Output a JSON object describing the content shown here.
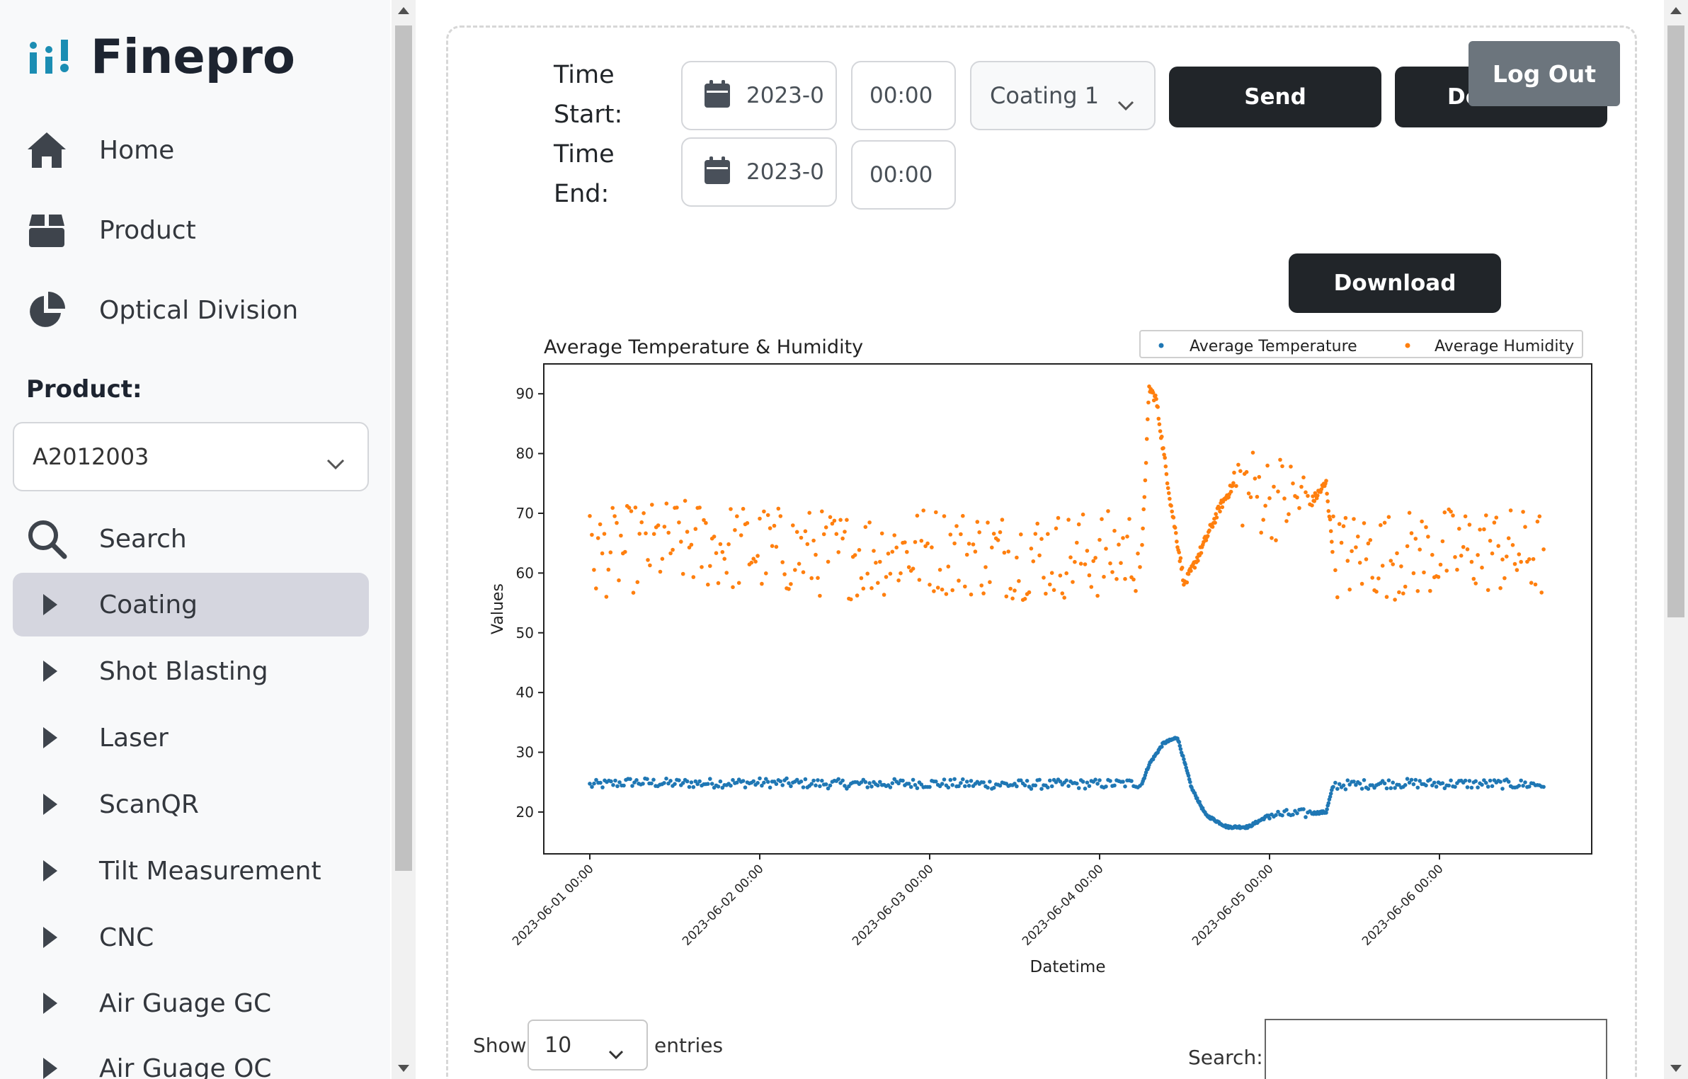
{
  "brand": {
    "name": "Finepro",
    "color": "#1b8db3"
  },
  "sidebar": {
    "top_items": [
      {
        "label": "Home",
        "icon": "home-icon"
      },
      {
        "label": "Product",
        "icon": "box-icon"
      },
      {
        "label": "Optical Division",
        "icon": "pie-chart-icon"
      }
    ],
    "product_label": "Product:",
    "product_value": "A2012003",
    "search_label": "Search",
    "menu_items": [
      {
        "label": "Coating",
        "active": true
      },
      {
        "label": "Shot Blasting"
      },
      {
        "label": "Laser"
      },
      {
        "label": "ScanQR"
      },
      {
        "label": "Tilt Measurement"
      },
      {
        "label": "CNC"
      },
      {
        "label": "Air Guage GC"
      },
      {
        "label": "Air Guage OC"
      }
    ]
  },
  "controls": {
    "start_label_1": "Time",
    "start_label_2": "Start:",
    "end_label_1": "Time",
    "end_label_2": "End:",
    "start_date": "2023-0",
    "start_time": "00:00",
    "end_date": "2023-0",
    "end_time": "00:00",
    "machine": "Coating 1",
    "send_label": "Send",
    "download_hidden_label": "Do",
    "logout_label": "Log Out",
    "download_label": "Download"
  },
  "table_controls": {
    "show_label": "Show",
    "entries_value": "10",
    "entries_label": "entries",
    "search_label": "Search:"
  },
  "chart_data": {
    "type": "scatter",
    "title": "Average Temperature & Humidity",
    "xlabel": "Datetime",
    "ylabel": "Values",
    "ylim": [
      13,
      95
    ],
    "yticks": [
      20,
      30,
      40,
      50,
      60,
      70,
      80,
      90
    ],
    "x_range": [
      "2023-06-01 00:00",
      "2023-06-06 15:00"
    ],
    "xticks": [
      "2023-06-01 00:00",
      "2023-06-02 00:00",
      "2023-06-03 00:00",
      "2023-06-04 00:00",
      "2023-06-05 00:00",
      "2023-06-06 00:00"
    ],
    "legend_position": "top-right",
    "series": [
      {
        "name": "Average Temperature",
        "color": "#1f77b4",
        "points": [
          [
            "2023-06-01 00:00",
            24.5
          ],
          [
            "2023-06-01 06:00",
            25.0
          ],
          [
            "2023-06-01 12:00",
            24.8
          ],
          [
            "2023-06-02 00:00",
            24.9
          ],
          [
            "2023-06-02 12:00",
            24.7
          ],
          [
            "2023-06-03 00:00",
            24.8
          ],
          [
            "2023-06-03 12:00",
            24.6
          ],
          [
            "2023-06-04 00:00",
            24.7
          ],
          [
            "2023-06-04 06:00",
            24.8
          ],
          [
            "2023-06-04 07:00",
            28.0
          ],
          [
            "2023-06-04 09:00",
            31.5
          ],
          [
            "2023-06-04 11:00",
            32.5
          ],
          [
            "2023-06-04 13:00",
            24.0
          ],
          [
            "2023-06-04 15:00",
            19.5
          ],
          [
            "2023-06-04 18:00",
            17.5
          ],
          [
            "2023-06-04 21:00",
            17.5
          ],
          [
            "2023-06-05 00:00",
            19.5
          ],
          [
            "2023-06-05 06:00",
            19.8
          ],
          [
            "2023-06-05 08:00",
            20.0
          ],
          [
            "2023-06-05 09:00",
            24.5
          ],
          [
            "2023-06-05 18:00",
            24.8
          ],
          [
            "2023-06-06 06:00",
            24.7
          ],
          [
            "2023-06-06 15:00",
            24.6
          ]
        ]
      },
      {
        "name": "Average Humidity",
        "color": "#ff7f0e",
        "points": [
          [
            "2023-06-01 00:00",
            63
          ],
          [
            "2023-06-01 12:00",
            65
          ],
          [
            "2023-06-02 00:00",
            64
          ],
          [
            "2023-06-02 12:00",
            63
          ],
          [
            "2023-06-03 00:00",
            64
          ],
          [
            "2023-06-03 12:00",
            63
          ],
          [
            "2023-06-04 00:00",
            63
          ],
          [
            "2023-06-04 06:00",
            64
          ],
          [
            "2023-06-04 07:00",
            91
          ],
          [
            "2023-06-04 08:00",
            89
          ],
          [
            "2023-06-04 10:00",
            72
          ],
          [
            "2023-06-04 12:00",
            58
          ],
          [
            "2023-06-04 14:00",
            63
          ],
          [
            "2023-06-04 17:00",
            71
          ],
          [
            "2023-06-04 19:00",
            75
          ],
          [
            "2023-06-05 00:00",
            73
          ],
          [
            "2023-06-05 06:00",
            72
          ],
          [
            "2023-06-05 08:00",
            75
          ],
          [
            "2023-06-05 09:00",
            63
          ],
          [
            "2023-06-05 18:00",
            63
          ],
          [
            "2023-06-06 06:00",
            64
          ],
          [
            "2023-06-06 15:00",
            63
          ]
        ]
      }
    ]
  }
}
